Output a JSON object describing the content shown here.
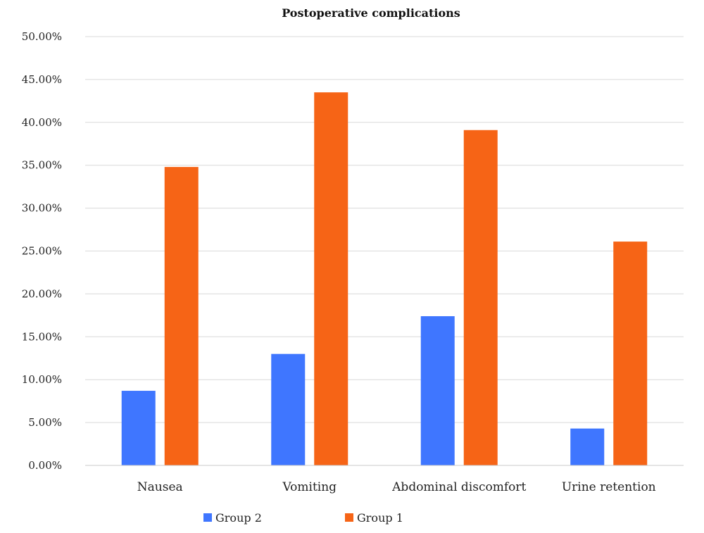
{
  "chart_data": {
    "type": "bar",
    "title": "Postoperative complications",
    "categories": [
      "Nausea",
      "Vomiting",
      "Abdominal discomfort",
      "Urine retention"
    ],
    "series": [
      {
        "name": "Group 2",
        "color": "#3f76ff",
        "values": [
          8.7,
          13.0,
          17.4,
          4.3
        ]
      },
      {
        "name": "Group 1",
        "color": "#f66416",
        "values": [
          34.8,
          43.5,
          39.1,
          26.1
        ]
      }
    ],
    "ylim": [
      0,
      50
    ],
    "yticks": [
      "0.00%",
      "5.00%",
      "10.00%",
      "15.00%",
      "20.00%",
      "25.00%",
      "30.00%",
      "35.00%",
      "40.00%",
      "45.00%",
      "50.00%"
    ],
    "grid": true,
    "legend_position": "bottom"
  }
}
